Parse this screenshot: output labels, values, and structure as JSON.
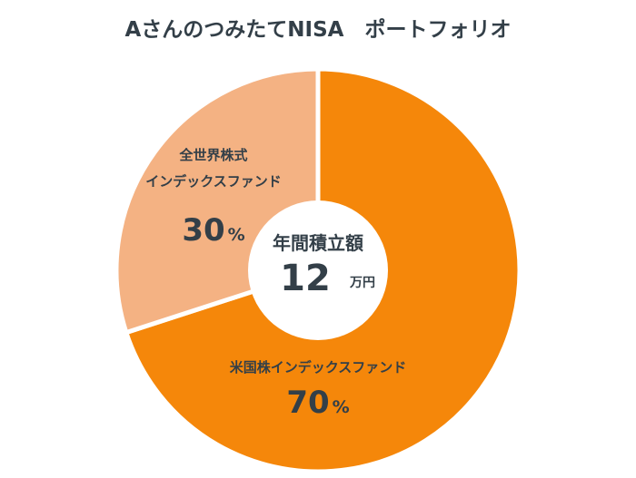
{
  "chart_data": {
    "type": "pie",
    "title": "AさんのつみたてNISA　ポートフォリオ",
    "center_label": "年間積立額",
    "center_value": "12",
    "center_unit": "万円",
    "slices": [
      {
        "label_lines": [
          "米国株インデックスファンド"
        ],
        "value": 70,
        "value_text": "70",
        "unit": "%",
        "color": "#f5870a"
      },
      {
        "label_lines": [
          "全世界株式",
          "インデックスファンド"
        ],
        "value": 30,
        "value_text": "30",
        "unit": "%",
        "color": "#f4b283"
      }
    ]
  }
}
